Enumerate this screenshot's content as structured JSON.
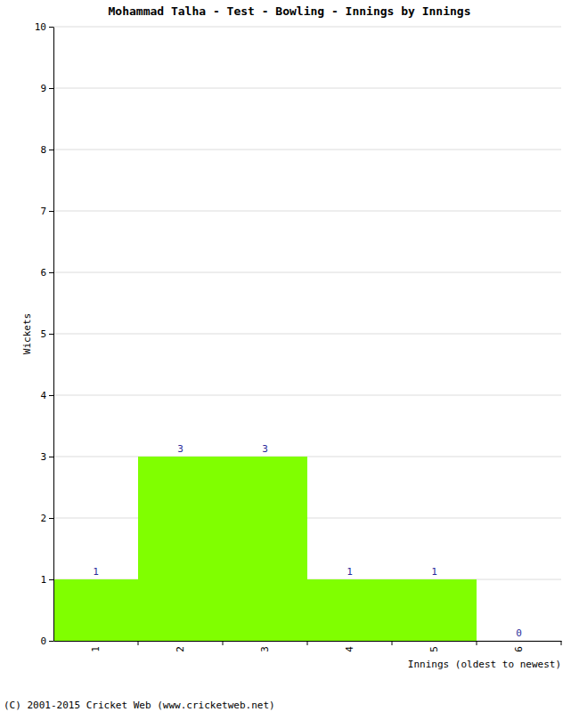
{
  "chart_data": {
    "type": "bar",
    "title": "Mohammad Talha - Test - Bowling - Innings by Innings",
    "x_label": "Innings (oldest to newest)",
    "y_label": "Wickets",
    "categories": [
      "1",
      "2",
      "3",
      "4",
      "5",
      "6"
    ],
    "values": [
      1,
      3,
      3,
      1,
      1,
      0
    ],
    "color": "#80ff00",
    "ylim": [
      0,
      10
    ],
    "yticks": [
      0,
      1,
      2,
      3,
      4,
      5,
      6,
      7,
      8,
      9,
      10
    ],
    "grid": true,
    "data_labels": true,
    "annotations": [
      "(C) 2001-2015 Cricket Web (www.cricketweb.net)"
    ]
  }
}
